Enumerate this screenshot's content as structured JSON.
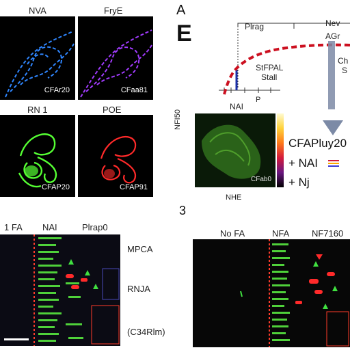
{
  "micrographs": [
    {
      "header": "NVA",
      "caption": "CFAr20",
      "color": "#2f86ff"
    },
    {
      "header": "FryE",
      "caption": "CFaa81",
      "color": "#a23cff"
    },
    {
      "header": "RN 1",
      "caption": "CFAP20",
      "color": "#55ff33"
    },
    {
      "header": "POE",
      "caption": "CFAP91",
      "color": "#ff2a2a"
    }
  ],
  "panel_A": {
    "letter": "A",
    "sub_letter": "E",
    "top_left_label": "Plrag",
    "top_right_label": "Nev",
    "agr_label": "AGr",
    "curve_label_line1": "StFPAL",
    "curve_label_line2": "Stall",
    "cropped_label_line1": "Ch",
    "cropped_label_line2": "S",
    "x_tick_left": "NAI",
    "x_tick_right": "P",
    "curve_color": "#cc1020",
    "marker_color": "#1b2fa8"
  },
  "heatmap": {
    "ylabel": "NFI50",
    "xlabel": "NHE",
    "caption": "CFab0",
    "legend_title": "CFAPluy20",
    "legend_item_1": "+ NAI",
    "legend_item_2": "+ Nj"
  },
  "panel_3": {
    "letter": "3"
  },
  "bottom_left": {
    "col_1": "1 FA",
    "col_2": "NAI",
    "col_3": "Plrap0",
    "row_1": "MPCA",
    "row_2": "RNJA",
    "row_3": "(C34Rlm)"
  },
  "bottom_right": {
    "col_1": "No FA",
    "col_2": "NFA",
    "col_3": "NF7160"
  }
}
